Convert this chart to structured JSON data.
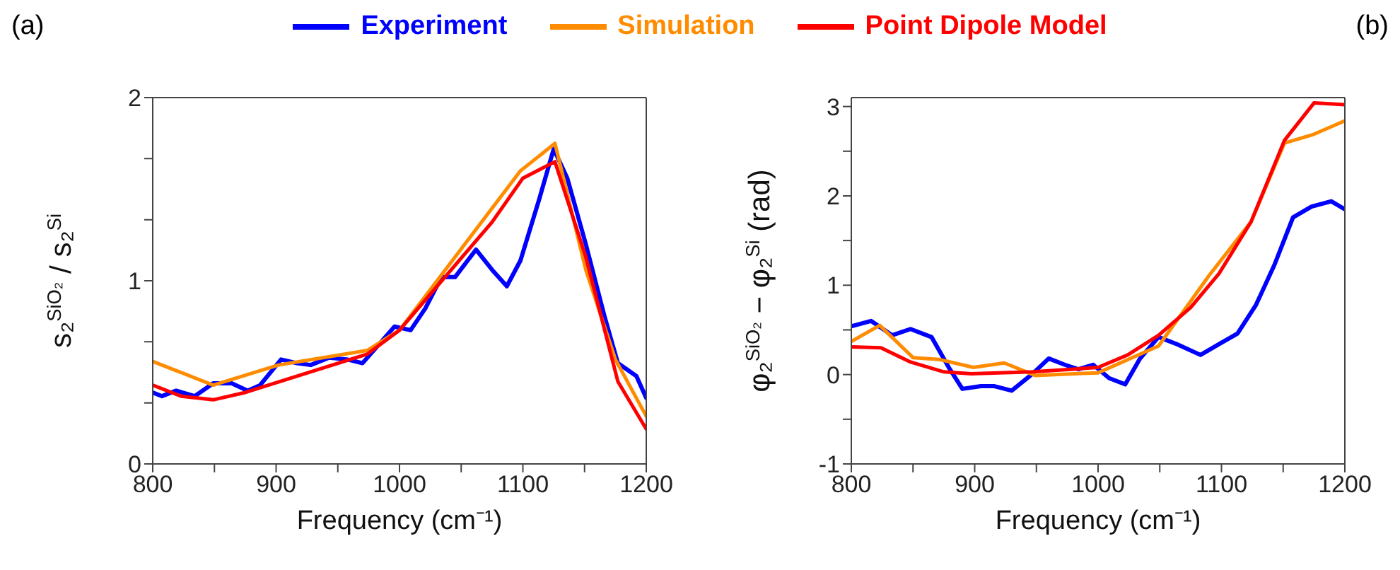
{
  "chart_data": [
    {
      "type": "line",
      "title": "(a)",
      "xlabel": "Frequency (cm⁻¹)",
      "ylabel": "s₂$^{SiO₂}$ / s₂$^{Si}$",
      "legend": "top",
      "marker": "none",
      "line_style": "solid",
      "grid": false,
      "xlim": [
        800,
        1200
      ],
      "xticks": [
        800,
        {
          "value": 850,
          "label": null
        },
        900,
        {
          "value": 950,
          "label": null
        },
        1000,
        {
          "value": 1050,
          "label": null
        },
        1100,
        {
          "value": 1150,
          "label": null
        },
        1200
      ],
      "ylim": [
        0,
        2
      ],
      "yticks": [
        0,
        {
          "value": 0.333,
          "label": null
        },
        {
          "value": 0.667,
          "label": null
        },
        1,
        {
          "value": 1.333,
          "label": null
        },
        {
          "value": 1.667,
          "label": null
        },
        2
      ],
      "series": [
        {
          "name": "Experiment",
          "color": "#0000ff",
          "x": [
            800,
            807.5,
            819,
            834,
            849,
            864,
            877,
            887,
            904,
            917,
            928,
            943,
            958,
            970,
            983,
            996,
            1009,
            1021,
            1034,
            1045,
            1062,
            1075,
            1087,
            1098,
            1113,
            1125,
            1136,
            1151,
            1166,
            1177,
            1192,
            1200
          ],
          "values": [
            0.39,
            0.37,
            0.4,
            0.37,
            0.44,
            0.44,
            0.4,
            0.43,
            0.57,
            0.55,
            0.54,
            0.58,
            0.57,
            0.55,
            0.65,
            0.75,
            0.73,
            0.85,
            1.02,
            1.02,
            1.17,
            1.06,
            0.97,
            1.11,
            1.44,
            1.72,
            1.56,
            1.2,
            0.81,
            0.55,
            0.48,
            0.36
          ]
        },
        {
          "name": "Simulation",
          "color": "#ff8c00",
          "x": [
            800,
            849,
            902,
            974,
            1000,
            1098,
            1126,
            1151,
            1175,
            1200
          ],
          "values": [
            0.56,
            0.43,
            0.54,
            0.62,
            0.73,
            1.6,
            1.75,
            1.06,
            0.57,
            0.26
          ]
        },
        {
          "name": "Point Dipole Model",
          "color": "#ff0000",
          "x": [
            800,
            823,
            849,
            875,
            974,
            1000,
            1075,
            1100,
            1126,
            1151,
            1177,
            1200
          ],
          "values": [
            0.43,
            0.37,
            0.35,
            0.39,
            0.6,
            0.73,
            1.32,
            1.56,
            1.65,
            1.13,
            0.45,
            0.19
          ]
        }
      ]
    },
    {
      "type": "line",
      "title": "(b)",
      "xlabel": "Frequency (cm⁻¹)",
      "ylabel": "φ₂$^{SiO₂}$ − φ₂$^{Si}$ (rad)",
      "marker": "none",
      "line_style": "solid",
      "grid": false,
      "xlim": [
        800,
        1200
      ],
      "xticks": [
        800,
        {
          "value": 850,
          "label": null
        },
        900,
        {
          "value": 950,
          "label": null
        },
        1000,
        {
          "value": 1050,
          "label": null
        },
        1100,
        {
          "value": 1150,
          "label": null
        },
        1200
      ],
      "ylim": [
        -1,
        3.1
      ],
      "yticks": [
        -1,
        {
          "value": -0.5,
          "label": null
        },
        0,
        {
          "value": 0.5,
          "label": null
        },
        1,
        {
          "value": 1.5,
          "label": null
        },
        2,
        {
          "value": 2.5,
          "label": null
        },
        3
      ],
      "series": [
        {
          "color": "#0000ff",
          "x": [
            800,
            816,
            833,
            848,
            865,
            879,
            890,
            905,
            916,
            930,
            947,
            960,
            973,
            984,
            996,
            1009,
            1022,
            1034,
            1049,
            1064,
            1083,
            1098,
            1113,
            1128,
            1143,
            1158,
            1173,
            1189,
            1200
          ],
          "values": [
            0.54,
            0.6,
            0.44,
            0.51,
            0.42,
            0.08,
            -0.16,
            -0.13,
            -0.13,
            -0.18,
            0.01,
            0.18,
            0.11,
            0.06,
            0.11,
            -0.04,
            -0.11,
            0.18,
            0.42,
            0.34,
            0.22,
            0.34,
            0.46,
            0.78,
            1.23,
            1.76,
            1.88,
            1.94,
            1.85
          ]
        },
        {
          "color": "#ff8c00",
          "x": [
            800,
            823,
            850,
            871,
            899,
            924,
            949,
            1000,
            1049,
            1090,
            1124,
            1151,
            1175,
            1200
          ],
          "values": [
            0.37,
            0.55,
            0.19,
            0.17,
            0.08,
            0.13,
            -0.01,
            0.02,
            0.32,
            1.11,
            1.71,
            2.59,
            2.69,
            2.84
          ]
        },
        {
          "color": "#ff0000",
          "x": [
            800,
            824,
            848,
            875,
            897,
            947,
            1000,
            1024,
            1049,
            1075,
            1098,
            1124,
            1151,
            1175,
            1200
          ],
          "values": [
            0.31,
            0.3,
            0.14,
            0.03,
            0.01,
            0.03,
            0.08,
            0.22,
            0.44,
            0.75,
            1.13,
            1.71,
            2.62,
            3.04,
            3.02
          ]
        }
      ]
    }
  ]
}
